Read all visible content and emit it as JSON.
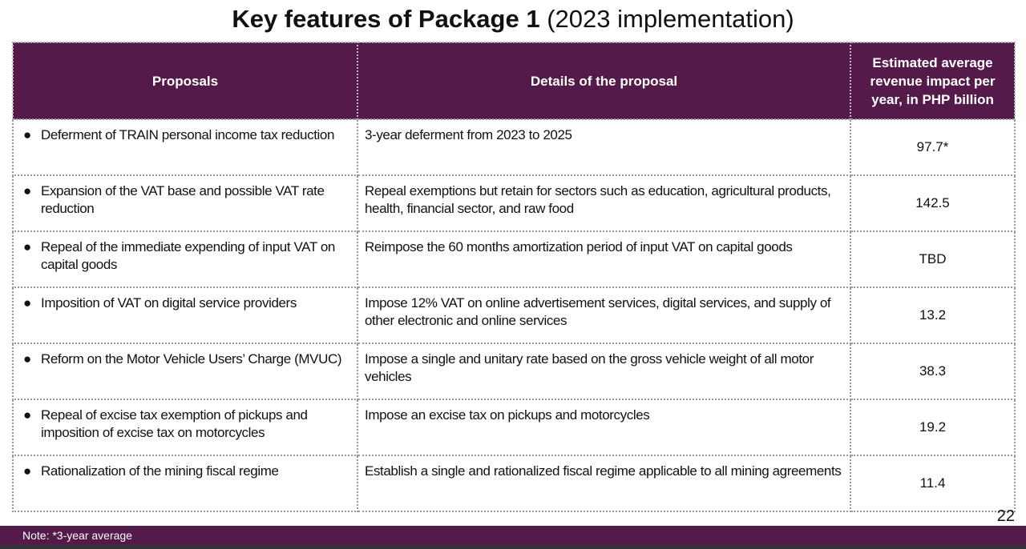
{
  "title": {
    "bold": "Key features of Package 1",
    "normal": "(2023 implementation)"
  },
  "table": {
    "headers": [
      "Proposals",
      "Details of the proposal",
      "Estimated average revenue impact per year, in PHP billion"
    ],
    "rows": [
      {
        "proposal": "Deferment of TRAIN personal income tax reduction",
        "details": "3-year deferment from 2023 to 2025",
        "impact": "97.7*"
      },
      {
        "proposal": "Expansion of the VAT base and possible VAT rate reduction",
        "details": "Repeal exemptions but retain for sectors such as education, agricultural products, health, financial sector, and raw food",
        "impact": "142.5"
      },
      {
        "proposal": "Repeal of the immediate expending of input VAT on capital goods",
        "details": "Reimpose the 60 months amortization period of  input VAT on capital goods",
        "impact": "TBD"
      },
      {
        "proposal": "Imposition of VAT on digital service providers",
        "details": "Impose 12% VAT on online advertisement services, digital services, and supply of other electronic and online services",
        "impact": "13.2"
      },
      {
        "proposal": "Reform on the Motor Vehicle Users’ Charge (MVUC)",
        "details": "Impose a single and unitary rate based on the gross vehicle weight of all motor vehicles",
        "impact": "38.3"
      },
      {
        "proposal": "Repeal of excise tax exemption of pickups and imposition of excise tax on motorcycles",
        "details": "Impose an excise tax on pickups and motorcycles",
        "impact": "19.2"
      },
      {
        "proposal": "Rationalization of the mining fiscal regime",
        "details": "Establish a single and rationalized fiscal regime applicable to all mining agreements",
        "impact": "11.4"
      }
    ]
  },
  "page_number": "22",
  "footer": {
    "note": "Note: *3-year average"
  },
  "colors": {
    "header_bg": "#541a4a"
  }
}
